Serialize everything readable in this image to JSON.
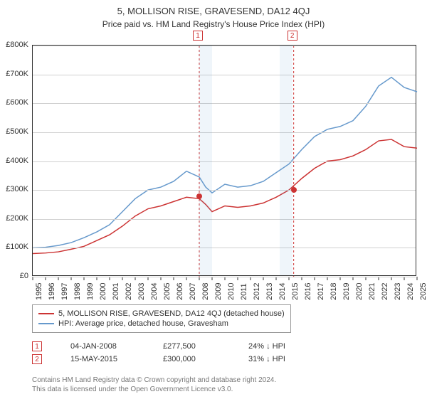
{
  "title": "5, MOLLISON RISE, GRAVESEND, DA12 4QJ",
  "subtitle": "Price paid vs. HM Land Registry's House Price Index (HPI)",
  "chart": {
    "type": "line",
    "background_color": "#ffffff",
    "grid_color": "#d0d0d0",
    "border_color": "#333333",
    "title_fontsize": 13,
    "label_fontsize": 11,
    "x_axis": {
      "min": 1995,
      "max": 2025,
      "tick_step": 1,
      "ticks": [
        1995,
        1996,
        1997,
        1998,
        1999,
        2000,
        2001,
        2002,
        2003,
        2004,
        2005,
        2006,
        2007,
        2008,
        2009,
        2010,
        2011,
        2012,
        2013,
        2014,
        2015,
        2016,
        2017,
        2018,
        2019,
        2020,
        2021,
        2022,
        2023,
        2024,
        2025
      ],
      "label_format_prefix": "",
      "rotate": -90
    },
    "y_axis": {
      "min": 0,
      "max": 800000,
      "tick_step": 100000,
      "ticks": [
        0,
        100000,
        200000,
        300000,
        400000,
        500000,
        600000,
        700000,
        800000
      ],
      "tick_labels": [
        "£0",
        "£100K",
        "£200K",
        "£300K",
        "£400K",
        "£500K",
        "£600K",
        "£700K",
        "£800K"
      ]
    },
    "bands": [
      {
        "from": 2008.0,
        "to": 2009.0,
        "color": "#6699cc"
      },
      {
        "from": 2014.3,
        "to": 2015.3,
        "color": "#6699cc"
      }
    ],
    "markers": [
      {
        "n": 1,
        "x": 2008.0,
        "y": 277500,
        "box_color": "#cc3333"
      },
      {
        "n": 2,
        "x": 2015.37,
        "y": 300000,
        "box_color": "#cc3333"
      }
    ],
    "series": [
      {
        "name": "price_paid",
        "label": "5, MOLLISON RISE, GRAVESEND, DA12 4QJ (detached house)",
        "color": "#cc3333",
        "line_width": 1.5,
        "data": [
          [
            1995,
            80000
          ],
          [
            1996,
            82000
          ],
          [
            1997,
            86000
          ],
          [
            1998,
            95000
          ],
          [
            1999,
            105000
          ],
          [
            2000,
            125000
          ],
          [
            2001,
            145000
          ],
          [
            2002,
            175000
          ],
          [
            2003,
            210000
          ],
          [
            2004,
            235000
          ],
          [
            2005,
            245000
          ],
          [
            2006,
            260000
          ],
          [
            2007,
            275000
          ],
          [
            2008,
            270000
          ],
          [
            2008.5,
            250000
          ],
          [
            2009,
            225000
          ],
          [
            2010,
            245000
          ],
          [
            2011,
            240000
          ],
          [
            2012,
            245000
          ],
          [
            2013,
            255000
          ],
          [
            2014,
            275000
          ],
          [
            2015,
            300000
          ],
          [
            2016,
            340000
          ],
          [
            2017,
            375000
          ],
          [
            2018,
            400000
          ],
          [
            2019,
            405000
          ],
          [
            2020,
            418000
          ],
          [
            2021,
            440000
          ],
          [
            2022,
            470000
          ],
          [
            2023,
            475000
          ],
          [
            2024,
            450000
          ],
          [
            2025,
            445000
          ]
        ]
      },
      {
        "name": "hpi",
        "label": "HPI: Average price, detached house, Gravesham",
        "color": "#6699cc",
        "line_width": 1.5,
        "data": [
          [
            1995,
            100000
          ],
          [
            1996,
            102000
          ],
          [
            1997,
            108000
          ],
          [
            1998,
            118000
          ],
          [
            1999,
            135000
          ],
          [
            2000,
            155000
          ],
          [
            2001,
            180000
          ],
          [
            2002,
            225000
          ],
          [
            2003,
            270000
          ],
          [
            2004,
            300000
          ],
          [
            2005,
            310000
          ],
          [
            2006,
            330000
          ],
          [
            2007,
            365000
          ],
          [
            2008,
            345000
          ],
          [
            2008.5,
            310000
          ],
          [
            2009,
            290000
          ],
          [
            2010,
            320000
          ],
          [
            2011,
            310000
          ],
          [
            2012,
            315000
          ],
          [
            2013,
            330000
          ],
          [
            2014,
            360000
          ],
          [
            2015,
            390000
          ],
          [
            2016,
            440000
          ],
          [
            2017,
            485000
          ],
          [
            2018,
            510000
          ],
          [
            2019,
            520000
          ],
          [
            2020,
            540000
          ],
          [
            2021,
            590000
          ],
          [
            2022,
            660000
          ],
          [
            2023,
            690000
          ],
          [
            2024,
            655000
          ],
          [
            2025,
            640000
          ]
        ]
      }
    ]
  },
  "legend": {
    "items": [
      {
        "key": "price_paid"
      },
      {
        "key": "hpi"
      }
    ]
  },
  "sales": [
    {
      "n": 1,
      "date": "04-JAN-2008",
      "price": "£277,500",
      "diff": "24% ↓ HPI"
    },
    {
      "n": 2,
      "date": "15-MAY-2015",
      "price": "£300,000",
      "diff": "31% ↓ HPI"
    }
  ],
  "footer1": "Contains HM Land Registry data © Crown copyright and database right 2024.",
  "footer2": "This data is licensed under the Open Government Licence v3.0."
}
